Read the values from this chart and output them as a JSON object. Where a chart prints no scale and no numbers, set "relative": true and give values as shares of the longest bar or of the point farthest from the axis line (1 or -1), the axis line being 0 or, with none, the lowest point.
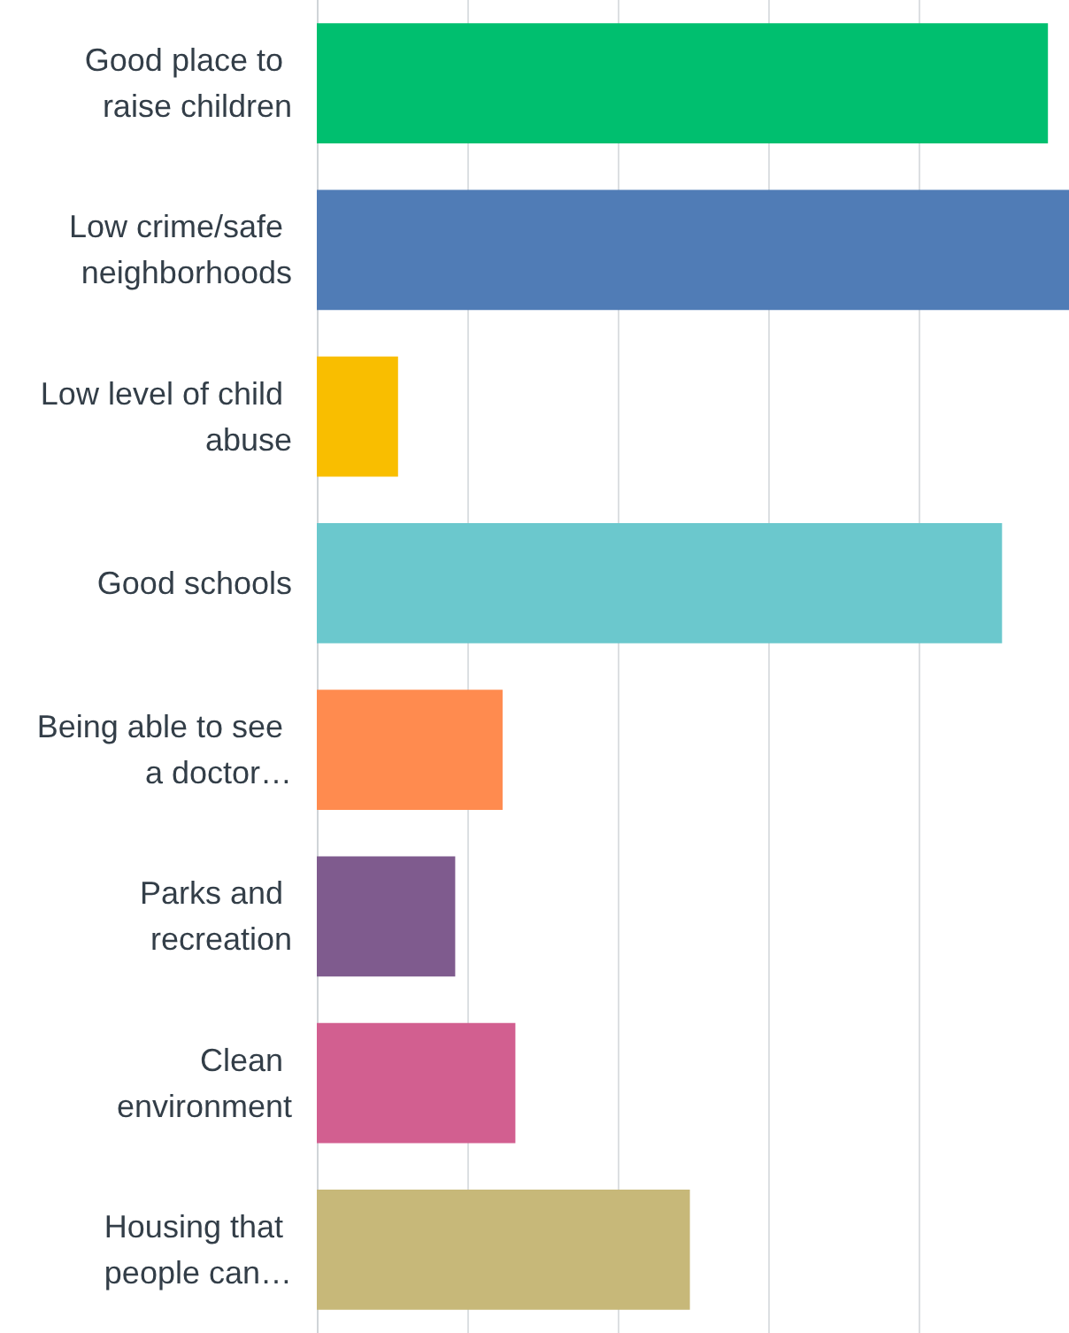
{
  "chart_data": {
    "type": "bar",
    "orientation": "horizontal",
    "relative": true,
    "grid": "x",
    "categories": [
      "Good place to raise children",
      "Low crime/safe neighborhoods",
      "Low level of child abuse",
      "Good schools",
      "Being able to see a doctor…",
      "Parks and recreation",
      "Clean environment",
      "Housing that people can…"
    ],
    "values": [
      0.972,
      1,
      0.108,
      0.911,
      0.247,
      0.184,
      0.264,
      0.496
    ],
    "colors": [
      "#00bf6f",
      "#507cb6",
      "#f9be00",
      "#6bc8cd",
      "#ff8b4f",
      "#7f5b8e",
      "#d25f90",
      "#c7b879"
    ]
  }
}
